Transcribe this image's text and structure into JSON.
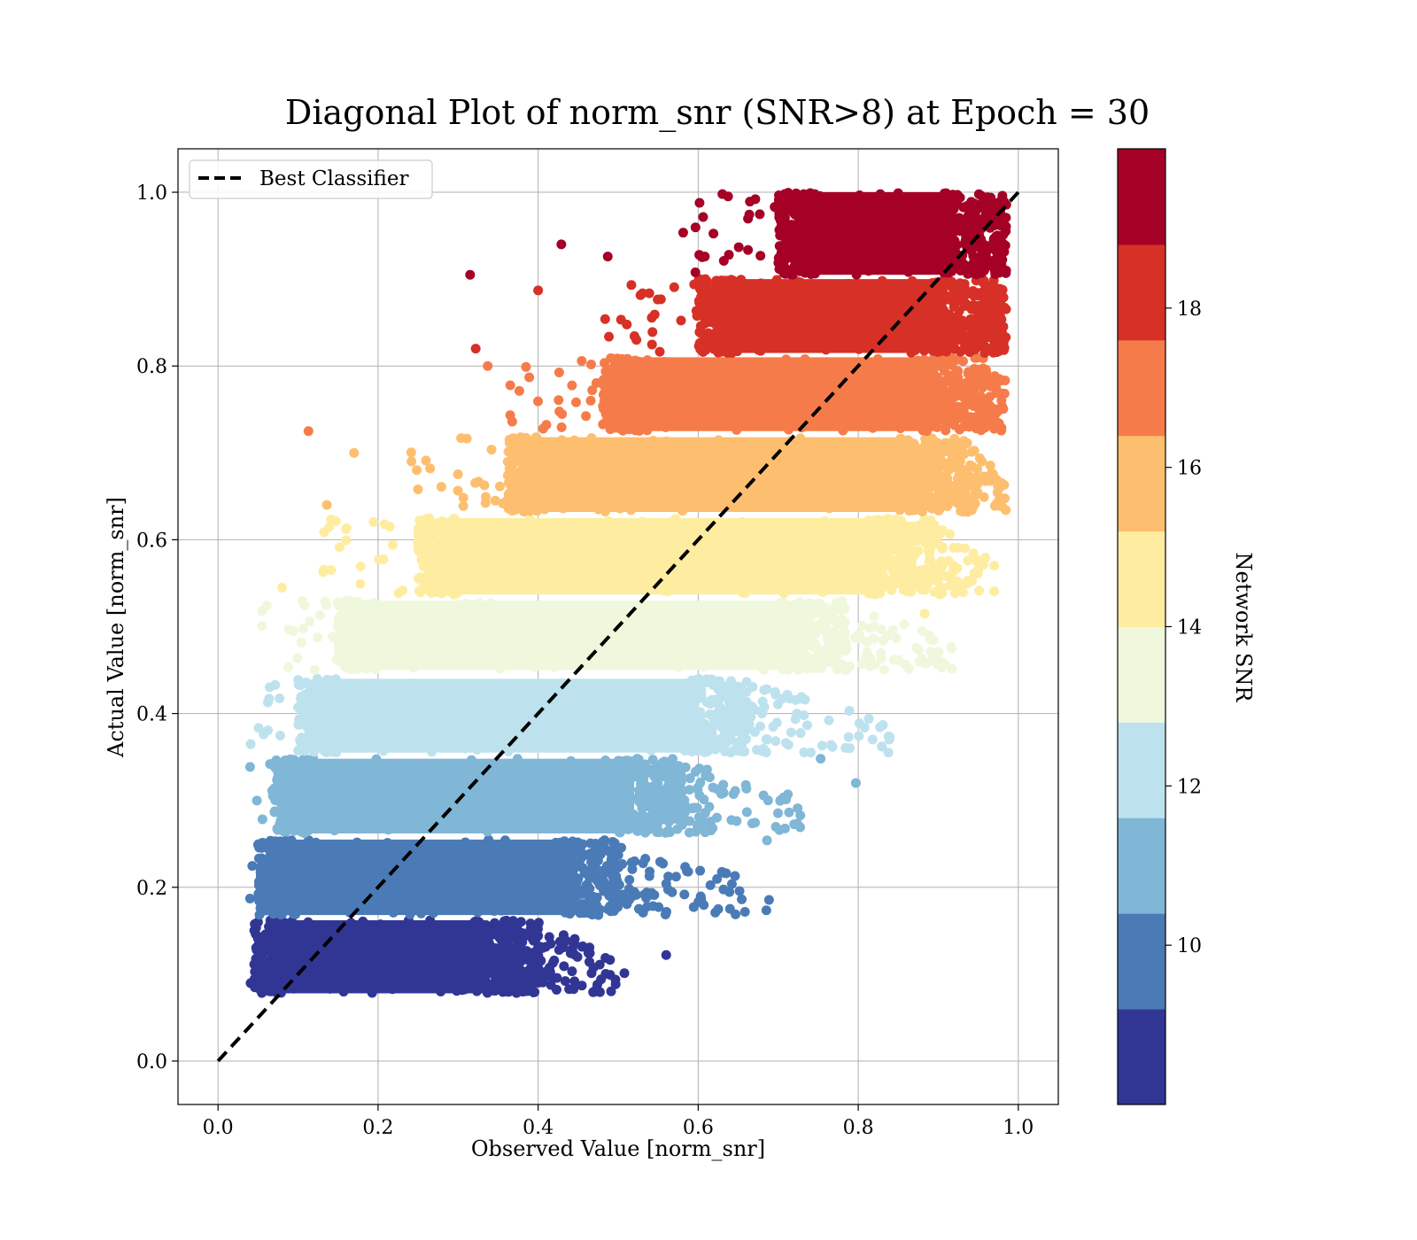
{
  "chart_data": {
    "type": "scatter",
    "title": "Diagonal Plot of norm_snr (SNR>8) at Epoch = 30",
    "xlabel": "Observed Value [norm_snr]",
    "ylabel": "Actual Value [norm_snr]",
    "xlim": [
      -0.05,
      1.05
    ],
    "ylim": [
      -0.05,
      1.05
    ],
    "x_ticks": [
      "0.0",
      "0.2",
      "0.4",
      "0.6",
      "0.8",
      "1.0"
    ],
    "y_ticks": [
      "0.0",
      "0.2",
      "0.4",
      "0.6",
      "0.8",
      "1.0"
    ],
    "grid": true,
    "legend": {
      "placement": "top-left",
      "entries": [
        "Best Classifier"
      ]
    },
    "reference_line": {
      "name": "Best Classifier",
      "x": [
        0,
        1
      ],
      "y": [
        0,
        1
      ],
      "style": "dashed",
      "color": "#000000"
    },
    "colorbar": {
      "label": "Network SNR",
      "range": [
        8,
        20
      ],
      "ticks": [
        "10",
        "12",
        "14",
        "16",
        "18"
      ],
      "tick_values": [
        10,
        12,
        14,
        16,
        18
      ],
      "colors": [
        "#313695",
        "#4a7bb7",
        "#80b6d6",
        "#bde2ee",
        "#eff8dd",
        "#feeda1",
        "#fdbf6f",
        "#f57c4a",
        "#d73027",
        "#a50026"
      ]
    },
    "bands": [
      {
        "snr_bin": [
          8,
          9.2
        ],
        "y_range": [
          0.078,
          0.162
        ],
        "x_core": [
          0.045,
          0.4
        ],
        "outlier_x_max": 0.47
      },
      {
        "snr_bin": [
          9.2,
          10.4
        ],
        "y_range": [
          0.168,
          0.255
        ],
        "x_core": [
          0.05,
          0.5
        ],
        "outlier_x_max": 0.65
      },
      {
        "snr_bin": [
          10.4,
          11.6
        ],
        "y_range": [
          0.262,
          0.348
        ],
        "x_core": [
          0.07,
          0.58
        ],
        "outlier_x_max": 0.69
      },
      {
        "snr_bin": [
          11.6,
          12.8
        ],
        "y_range": [
          0.355,
          0.44
        ],
        "x_core": [
          0.1,
          0.66
        ],
        "outlier_x_max": 0.8
      },
      {
        "snr_bin": [
          12.8,
          14.0
        ],
        "y_range": [
          0.45,
          0.53
        ],
        "x_core": [
          0.15,
          0.78
        ],
        "outlier_x_max": 0.88
      },
      {
        "snr_bin": [
          14.0,
          15.2
        ],
        "y_range": [
          0.537,
          0.625
        ],
        "x_core": [
          0.25,
          0.89
        ],
        "outlier_x_max": 0.93
      },
      {
        "snr_bin": [
          15.2,
          16.4
        ],
        "y_range": [
          0.632,
          0.718
        ],
        "x_core": [
          0.36,
          0.93
        ],
        "outlier_x_max": 0.95
      },
      {
        "snr_bin": [
          16.4,
          17.6
        ],
        "y_range": [
          0.725,
          0.81
        ],
        "x_core": [
          0.48,
          0.96
        ],
        "outlier_x_max": 0.98
      },
      {
        "snr_bin": [
          17.6,
          18.8
        ],
        "y_range": [
          0.815,
          0.9
        ],
        "x_core": [
          0.6,
          0.97
        ],
        "outlier_x_max": 0.98
      },
      {
        "snr_bin": [
          18.8,
          20.0
        ],
        "y_range": [
          0.905,
          1.0
        ],
        "x_core": [
          0.7,
          0.98
        ],
        "outlier_x_max": 0.98
      }
    ],
    "outliers": [
      {
        "x": 0.113,
        "y": 0.725,
        "snr": 16.9
      },
      {
        "x": 0.17,
        "y": 0.7,
        "snr": 15.9
      },
      {
        "x": 0.315,
        "y": 0.905,
        "snr": 19.2
      },
      {
        "x": 0.4,
        "y": 0.887,
        "snr": 18.7
      },
      {
        "x": 0.322,
        "y": 0.82,
        "snr": 18.0
      },
      {
        "x": 0.337,
        "y": 0.8,
        "snr": 17.5
      },
      {
        "x": 0.429,
        "y": 0.94,
        "snr": 19.3
      },
      {
        "x": 0.487,
        "y": 0.926,
        "snr": 19.3
      },
      {
        "x": 0.08,
        "y": 0.545,
        "snr": 14.8
      },
      {
        "x": 0.136,
        "y": 0.64,
        "snr": 15.6
      },
      {
        "x": 0.56,
        "y": 0.122,
        "snr": 9.2
      },
      {
        "x": 0.646,
        "y": 0.213,
        "snr": 9.9
      },
      {
        "x": 0.686,
        "y": 0.254,
        "snr": 10.6
      },
      {
        "x": 0.797,
        "y": 0.32,
        "snr": 11.3
      },
      {
        "x": 0.753,
        "y": 0.348,
        "snr": 11.5
      },
      {
        "x": 0.712,
        "y": 0.307,
        "snr": 11.0
      },
      {
        "x": 0.057,
        "y": 0.376,
        "snr": 11.8
      },
      {
        "x": 0.04,
        "y": 0.187,
        "snr": 9.5
      },
      {
        "x": 0.474,
        "y": 0.088,
        "snr": 8.9
      },
      {
        "x": 0.905,
        "y": 0.57,
        "snr": 14.9
      },
      {
        "x": 0.883,
        "y": 0.515,
        "snr": 14.2
      },
      {
        "x": 0.958,
        "y": 0.815,
        "snr": 18.2
      }
    ]
  }
}
